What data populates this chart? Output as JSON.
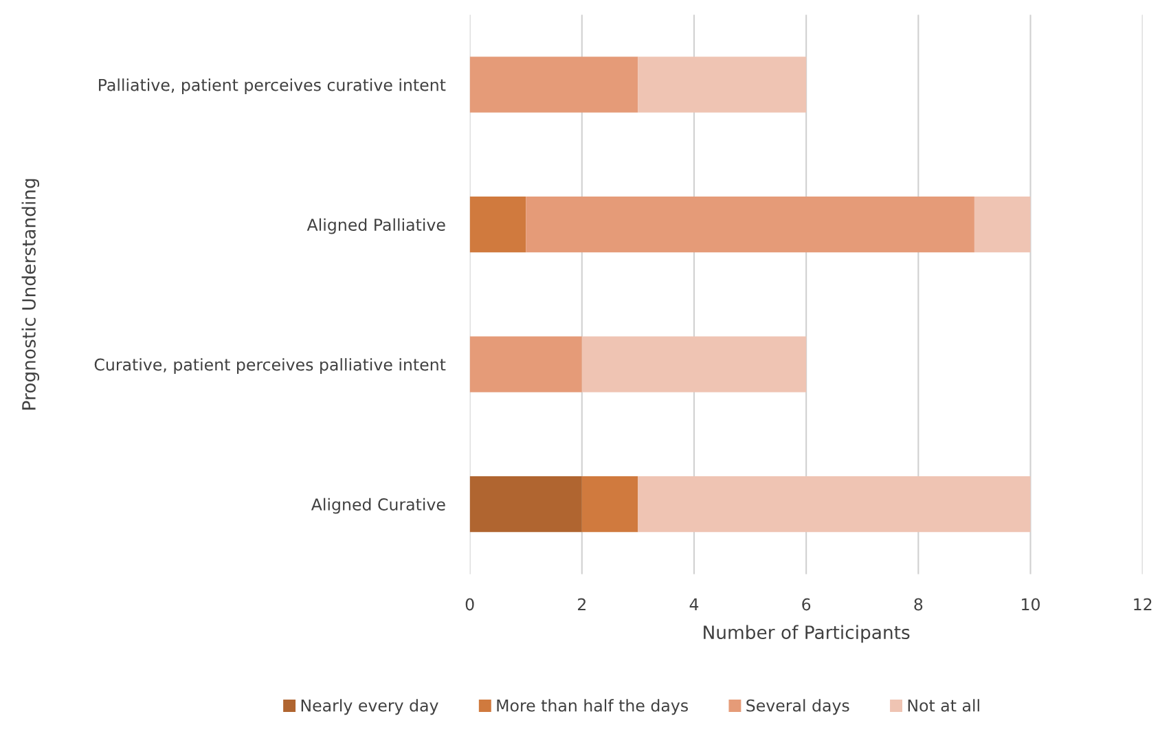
{
  "chart_data": {
    "type": "bar",
    "orientation": "horizontal",
    "stacked": true,
    "categories": [
      "Palliative, patient perceives curative intent",
      "Aligned Palliative",
      "Curative, patient perceives palliative intent",
      "Aligned Curative"
    ],
    "series": [
      {
        "name": "Nearly every day",
        "color": "#b06530",
        "values": [
          0,
          0,
          0,
          2
        ]
      },
      {
        "name": "More than half the days",
        "color": "#d07a3e",
        "values": [
          0,
          1,
          0,
          1
        ]
      },
      {
        "name": "Several days",
        "color": "#e59b78",
        "values": [
          3,
          8,
          2,
          0
        ]
      },
      {
        "name": "Not at all",
        "color": "#efc4b3",
        "values": [
          3,
          1,
          4,
          7
        ]
      }
    ],
    "xlabel": "Number of Participants",
    "ylabel": "Prognostic Understanding",
    "xlim": [
      0,
      12
    ],
    "xticks": [
      0,
      2,
      4,
      6,
      8,
      10,
      12
    ],
    "grid": "x",
    "legend": "bottom"
  }
}
